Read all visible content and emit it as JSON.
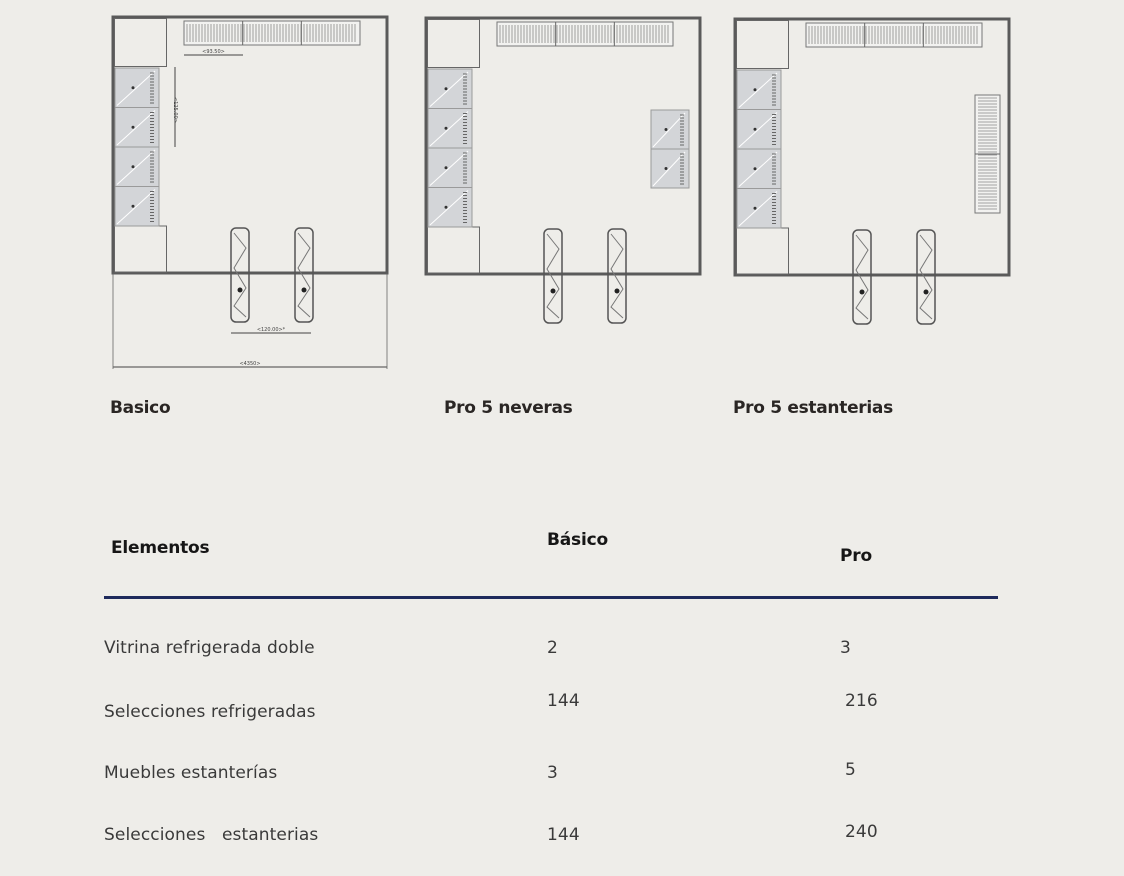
{
  "plans": [
    {
      "title": "Basico",
      "variant": "basic",
      "dimensions": [
        "<93.50>",
        "<125.00>",
        "<120.00>*",
        "<4350>"
      ]
    },
    {
      "title": "Pro 5 neveras",
      "variant": "pro-fridges"
    },
    {
      "title": "Pro 5 estanterias",
      "variant": "pro-shelves"
    }
  ],
  "table": {
    "headers": {
      "element": "Elementos",
      "basic": "Básico",
      "pro": "Pro"
    },
    "rows": [
      {
        "element": "Vitrina refrigerada doble",
        "basic": "2",
        "pro": "3"
      },
      {
        "element": "Selecciones refrigeradas",
        "basic": "144",
        "pro": "216"
      },
      {
        "element": "Muebles estanterías",
        "basic": "3",
        "pro": "5"
      },
      {
        "element": "Selecciones   estanterias",
        "basic": "144",
        "pro": "240"
      }
    ]
  },
  "colors": {
    "rule": "#1e2a5c",
    "background": "#eeede9",
    "wall": "#5a5a5a"
  }
}
